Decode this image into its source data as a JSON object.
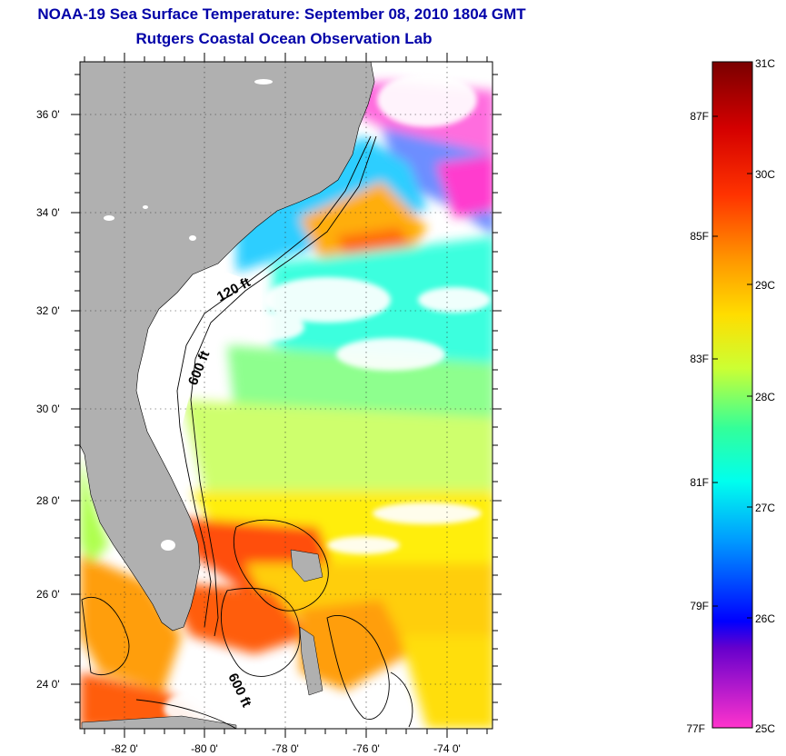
{
  "header": {
    "title": "NOAA-19 Sea Surface Temperature:  September 08, 2010 1804 GMT",
    "subtitle": "Rutgers Coastal Ocean Observation Lab"
  },
  "map": {
    "lon_ticks": [
      "-82 0'",
      "-80 0'",
      "-78 0'",
      "-76 0'",
      "-74 0'"
    ],
    "lat_ticks": [
      "36 0'",
      "34 0'",
      "32 0'",
      "30 0'",
      "28 0'",
      "26 0'",
      "24 0'"
    ],
    "isobath_labels": [
      "120 ft",
      "600 ft",
      "600 ft"
    ],
    "colors": {
      "land": "#b0b0b0",
      "no_data": "#ffffff"
    }
  },
  "colorbar": {
    "celsius": [
      "31C",
      "30C",
      "29C",
      "28C",
      "27C",
      "26C",
      "25C"
    ],
    "fahrenheit": [
      "87F",
      "85F",
      "83F",
      "81F",
      "79F",
      "77F"
    ],
    "stops": [
      "#ff33cc",
      "#9900cc",
      "#0000ff",
      "#00aaff",
      "#00ffcc",
      "#66ff33",
      "#ffff00",
      "#ffaa00",
      "#ff3300",
      "#cc0000",
      "#800000"
    ]
  }
}
